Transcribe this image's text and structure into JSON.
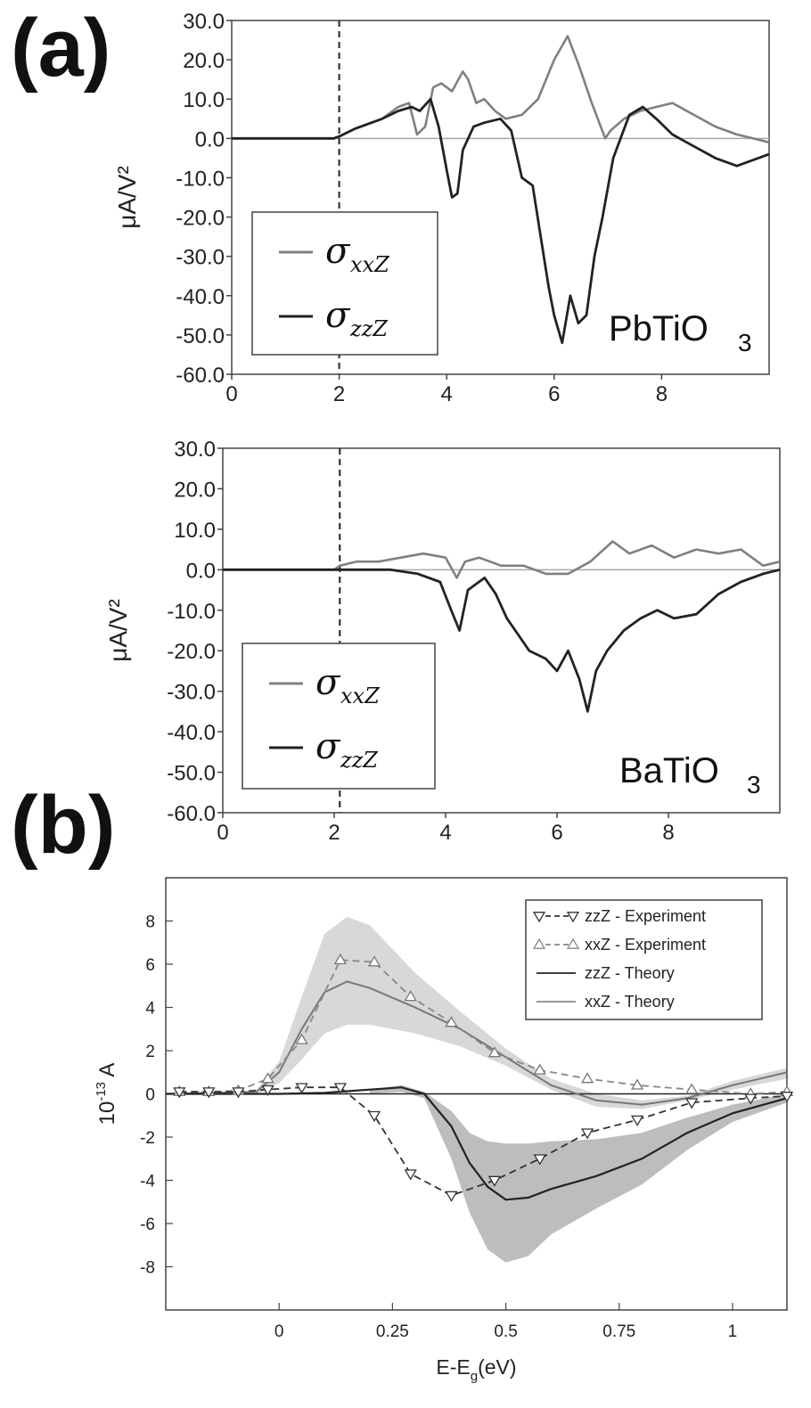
{
  "panels": {
    "a_label": "(a)",
    "b_label": "(b)"
  },
  "chart_data": [
    {
      "type": "line",
      "panel": "(a) top",
      "annotation": "PbTiO",
      "annotation_sub": "3",
      "ylabel": "μA/V²",
      "xlabel": "",
      "xlim": [
        0,
        10
      ],
      "ylim": [
        -60,
        30
      ],
      "x_ticks": [
        "0",
        "2",
        "4",
        "6",
        "8"
      ],
      "y_ticks": [
        "30.0",
        "20.0",
        "10.0",
        "0.0",
        "-10.0",
        "-20.0",
        "-30.0",
        "-40.0",
        "-50.0",
        "-60.0"
      ],
      "vline_x": 2.0,
      "legend": [
        {
          "symbol": "σ",
          "sub": "xxZ",
          "color": "#808080"
        },
        {
          "symbol": "σ",
          "sub": "zzZ",
          "color": "#222222"
        }
      ],
      "series": [
        {
          "name": "σxxZ",
          "color": "#808080",
          "x": [
            0,
            1.9,
            2.0,
            2.3,
            2.8,
            3.1,
            3.3,
            3.45,
            3.6,
            3.75,
            3.9,
            4.1,
            4.3,
            4.4,
            4.55,
            4.7,
            4.9,
            5.1,
            5.4,
            5.7,
            6.0,
            6.25,
            6.45,
            6.7,
            6.95,
            7.05,
            7.3,
            7.6,
            7.9,
            8.2,
            8.6,
            9.0,
            9.4,
            10
          ],
          "y": [
            0,
            0,
            0.5,
            2.5,
            5,
            8,
            9,
            1,
            3,
            13,
            14,
            12,
            17,
            15,
            9,
            10,
            7,
            5,
            6,
            10,
            20,
            26,
            19,
            9,
            0,
            2,
            5,
            7,
            8,
            9,
            6,
            3,
            1,
            -1
          ]
        },
        {
          "name": "σzzZ",
          "color": "#222222",
          "x": [
            0,
            1.9,
            2.0,
            2.3,
            2.8,
            3.1,
            3.35,
            3.5,
            3.7,
            3.85,
            4.0,
            4.1,
            4.2,
            4.3,
            4.5,
            4.7,
            5.0,
            5.2,
            5.4,
            5.6,
            5.75,
            5.9,
            6.0,
            6.15,
            6.3,
            6.45,
            6.6,
            6.75,
            6.9,
            7.1,
            7.4,
            7.65,
            7.9,
            8.2,
            8.6,
            9.0,
            9.4,
            9.8,
            10
          ],
          "y": [
            0,
            0,
            0.5,
            2.5,
            5,
            7,
            8,
            7,
            10,
            3,
            -8,
            -15,
            -14,
            -3,
            3,
            4,
            5,
            2,
            -10,
            -12,
            -25,
            -38,
            -45,
            -52,
            -40,
            -47,
            -45,
            -30,
            -20,
            -5,
            6,
            8,
            5,
            1,
            -2,
            -5,
            -7,
            -5,
            -4
          ]
        }
      ]
    },
    {
      "type": "line",
      "panel": "(a) bottom",
      "annotation": "BaTiO",
      "annotation_sub": "3",
      "ylabel": "μA/V²",
      "xlabel": "",
      "xlim": [
        0,
        10
      ],
      "ylim": [
        -60,
        30
      ],
      "x_ticks": [
        "0",
        "2",
        "4",
        "6",
        "8"
      ],
      "y_ticks": [
        "30.0",
        "20.0",
        "10.0",
        "0.0",
        "-10.0",
        "-20.0",
        "-30.0",
        "-40.0",
        "-50.0",
        "-60.0"
      ],
      "vline_x": 2.1,
      "legend": [
        {
          "symbol": "σ",
          "sub": "xxZ",
          "color": "#808080"
        },
        {
          "symbol": "σ",
          "sub": "zzZ",
          "color": "#222222"
        }
      ],
      "series": [
        {
          "name": "σxxZ",
          "color": "#808080",
          "x": [
            0,
            2.0,
            2.1,
            2.4,
            2.8,
            3.2,
            3.6,
            4.0,
            4.2,
            4.35,
            4.6,
            5.0,
            5.4,
            5.8,
            6.2,
            6.6,
            7.0,
            7.3,
            7.7,
            8.1,
            8.5,
            8.9,
            9.3,
            9.7,
            10
          ],
          "y": [
            0,
            0,
            1,
            2,
            2,
            3,
            4,
            3,
            -2,
            2,
            3,
            1,
            1,
            -1,
            -1,
            2,
            7,
            4,
            6,
            3,
            5,
            4,
            5,
            1,
            2
          ]
        },
        {
          "name": "σzzZ",
          "color": "#222222",
          "x": [
            0,
            2.0,
            2.1,
            2.6,
            3.0,
            3.5,
            3.9,
            4.1,
            4.25,
            4.4,
            4.7,
            4.9,
            5.1,
            5.3,
            5.5,
            5.8,
            6.0,
            6.2,
            6.4,
            6.55,
            6.7,
            6.9,
            7.2,
            7.5,
            7.8,
            8.1,
            8.5,
            8.9,
            9.3,
            9.7,
            10
          ],
          "y": [
            0,
            0,
            0,
            0,
            0,
            -1,
            -3,
            -10,
            -15,
            -5,
            -2,
            -6,
            -12,
            -16,
            -20,
            -22,
            -25,
            -20,
            -27,
            -35,
            -25,
            -20,
            -15,
            -12,
            -10,
            -12,
            -11,
            -6,
            -3,
            -1,
            0
          ]
        }
      ]
    },
    {
      "type": "line",
      "panel": "(b)",
      "xlabel": "E-E",
      "xlabel_sub": "g",
      "xlabel_tail": "(eV)",
      "ylabel": "10",
      "ylabel_sup": "-13",
      "ylabel_tail": " A",
      "xlim": [
        -0.25,
        1.12
      ],
      "ylim": [
        -10,
        10
      ],
      "x_ticks": [
        "0",
        "0.25",
        "0.5",
        "0.75",
        "1"
      ],
      "y_ticks": [
        "8",
        "6",
        "4",
        "2",
        "0",
        "-2",
        "-4",
        "-6",
        "-8"
      ],
      "legend": [
        {
          "label": "zzZ - Experiment",
          "style": "dashed-down-triangle",
          "color": "#333333"
        },
        {
          "label": "xxZ - Experiment",
          "style": "dashed-up-triangle",
          "color": "#888888"
        },
        {
          "label": "zzZ - Theory",
          "style": "solid",
          "color": "#222222"
        },
        {
          "label": "xxZ - Theory",
          "style": "solid",
          "color": "#888888"
        }
      ],
      "series": [
        {
          "name": "zzZ - Experiment",
          "x": [
            -0.22,
            -0.155,
            -0.09,
            -0.025,
            0.05,
            0.135,
            0.21,
            0.29,
            0.38,
            0.475,
            0.575,
            0.68,
            0.79,
            0.91,
            1.04,
            1.12
          ],
          "y": [
            0.1,
            0.1,
            0.1,
            0.2,
            0.3,
            0.3,
            -1.0,
            -3.7,
            -4.7,
            -4.0,
            -3.0,
            -1.8,
            -1.2,
            -0.4,
            -0.2,
            -0.1
          ]
        },
        {
          "name": "xxZ - Experiment",
          "x": [
            -0.22,
            -0.155,
            -0.09,
            -0.025,
            0.05,
            0.135,
            0.21,
            0.29,
            0.38,
            0.475,
            0.575,
            0.68,
            0.79,
            0.91,
            1.04,
            1.12
          ],
          "y": [
            0.1,
            0.1,
            0.15,
            0.7,
            2.5,
            6.2,
            6.1,
            4.5,
            3.3,
            1.9,
            1.1,
            0.7,
            0.4,
            0.2,
            0.0,
            0.1
          ]
        },
        {
          "name": "zzZ - Theory",
          "x": [
            -0.25,
            0.0,
            0.1,
            0.2,
            0.27,
            0.32,
            0.38,
            0.42,
            0.46,
            0.5,
            0.55,
            0.6,
            0.7,
            0.8,
            0.9,
            1.0,
            1.12
          ],
          "y": [
            0,
            0,
            0.05,
            0.2,
            0.3,
            0.0,
            -1.5,
            -3.2,
            -4.3,
            -4.9,
            -4.8,
            -4.4,
            -3.8,
            -3.0,
            -1.8,
            -0.9,
            -0.2
          ]
        },
        {
          "name": "xxZ - Theory",
          "x": [
            -0.25,
            -0.05,
            0.0,
            0.05,
            0.1,
            0.15,
            0.2,
            0.3,
            0.4,
            0.5,
            0.6,
            0.7,
            0.8,
            0.9,
            1.0,
            1.12
          ],
          "y": [
            0,
            0.1,
            1.0,
            3.0,
            4.7,
            5.2,
            4.9,
            4.0,
            3.0,
            1.7,
            0.4,
            -0.3,
            -0.5,
            -0.2,
            0.4,
            1.0
          ]
        }
      ],
      "bands": [
        {
          "name": "xxZ - Theory band",
          "color": "#d8d8d8",
          "x": [
            -0.05,
            0.0,
            0.05,
            0.1,
            0.15,
            0.2,
            0.3,
            0.4,
            0.5,
            0.6,
            0.7,
            0.8,
            0.9,
            1.0,
            1.12
          ],
          "upper": [
            0.2,
            1.5,
            4.5,
            7.4,
            8.2,
            7.8,
            5.6,
            3.8,
            2.1,
            0.7,
            0.0,
            -0.3,
            -0.1,
            0.6,
            1.2
          ],
          "lower": [
            0.0,
            0.5,
            1.6,
            2.8,
            3.2,
            3.2,
            2.8,
            2.2,
            1.3,
            0.2,
            -0.6,
            -0.7,
            -0.3,
            0.2,
            0.7
          ]
        },
        {
          "name": "zzZ - Theory band",
          "color": "#bdbdbd",
          "x": [
            0.2,
            0.27,
            0.32,
            0.38,
            0.42,
            0.46,
            0.5,
            0.55,
            0.6,
            0.7,
            0.8,
            0.9,
            1.0,
            1.12
          ],
          "upper": [
            0.2,
            0.4,
            0.1,
            -0.8,
            -1.8,
            -2.2,
            -2.3,
            -2.3,
            -2.2,
            -2.1,
            -1.8,
            -1.1,
            -0.5,
            0.0
          ],
          "lower": [
            0.0,
            0.1,
            -0.2,
            -3.0,
            -5.5,
            -7.2,
            -7.8,
            -7.5,
            -6.5,
            -5.3,
            -4.2,
            -2.6,
            -1.3,
            -0.4
          ]
        }
      ]
    }
  ]
}
